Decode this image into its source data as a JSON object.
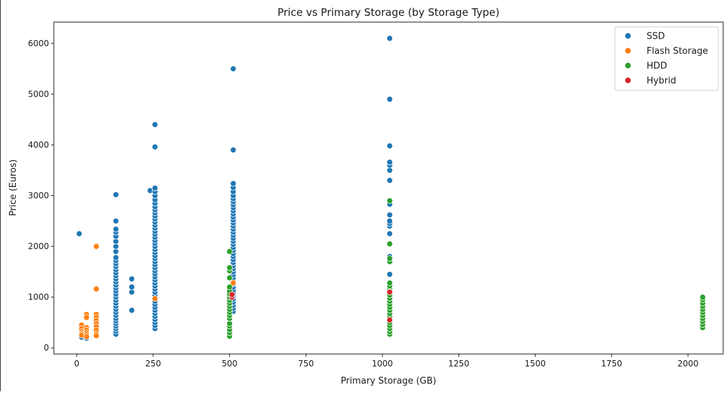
{
  "chart_data": {
    "type": "scatter",
    "title": "Price vs Primary Storage (by Storage Type)",
    "xlabel": "Primary Storage (GB)",
    "ylabel": "Price (Euros)",
    "xlim": [
      -75,
      2115
    ],
    "ylim": [
      -120,
      6420
    ],
    "xticks": [
      0,
      250,
      500,
      750,
      1000,
      1250,
      1500,
      1750,
      2000
    ],
    "yticks": [
      0,
      1000,
      2000,
      3000,
      4000,
      5000,
      6000
    ],
    "grid": false,
    "legend_position": "top-right",
    "series": [
      {
        "name": "SSD",
        "color": "#1f77b4",
        "points": [
          [
            8,
            2250
          ],
          [
            16,
            210
          ],
          [
            32,
            190
          ],
          [
            32,
            240
          ],
          [
            128,
            270
          ],
          [
            128,
            330
          ],
          [
            128,
            380
          ],
          [
            128,
            430
          ],
          [
            128,
            480
          ],
          [
            128,
            530
          ],
          [
            128,
            580
          ],
          [
            128,
            640
          ],
          [
            128,
            700
          ],
          [
            128,
            760
          ],
          [
            128,
            820
          ],
          [
            128,
            880
          ],
          [
            128,
            940
          ],
          [
            128,
            1000
          ],
          [
            128,
            1060
          ],
          [
            128,
            1120
          ],
          [
            128,
            1180
          ],
          [
            128,
            1240
          ],
          [
            128,
            1300
          ],
          [
            128,
            1360
          ],
          [
            128,
            1420
          ],
          [
            128,
            1480
          ],
          [
            128,
            1540
          ],
          [
            128,
            1600
          ],
          [
            128,
            1660
          ],
          [
            128,
            1720
          ],
          [
            128,
            1780
          ],
          [
            128,
            1900
          ],
          [
            128,
            2000
          ],
          [
            128,
            2100
          ],
          [
            128,
            2200
          ],
          [
            128,
            2280
          ],
          [
            128,
            2340
          ],
          [
            128,
            2500
          ],
          [
            128,
            3020
          ],
          [
            180,
            740
          ],
          [
            180,
            1100
          ],
          [
            180,
            1200
          ],
          [
            180,
            1360
          ],
          [
            240,
            3100
          ],
          [
            256,
            380
          ],
          [
            256,
            440
          ],
          [
            256,
            500
          ],
          [
            256,
            560
          ],
          [
            256,
            620
          ],
          [
            256,
            680
          ],
          [
            256,
            740
          ],
          [
            256,
            800
          ],
          [
            256,
            860
          ],
          [
            256,
            920
          ],
          [
            256,
            980
          ],
          [
            256,
            1040
          ],
          [
            256,
            1100
          ],
          [
            256,
            1160
          ],
          [
            256,
            1220
          ],
          [
            256,
            1280
          ],
          [
            256,
            1340
          ],
          [
            256,
            1400
          ],
          [
            256,
            1460
          ],
          [
            256,
            1520
          ],
          [
            256,
            1580
          ],
          [
            256,
            1640
          ],
          [
            256,
            1700
          ],
          [
            256,
            1760
          ],
          [
            256,
            1820
          ],
          [
            256,
            1880
          ],
          [
            256,
            1940
          ],
          [
            256,
            2000
          ],
          [
            256,
            2060
          ],
          [
            256,
            2120
          ],
          [
            256,
            2180
          ],
          [
            256,
            2240
          ],
          [
            256,
            2300
          ],
          [
            256,
            2360
          ],
          [
            256,
            2420
          ],
          [
            256,
            2480
          ],
          [
            256,
            2540
          ],
          [
            256,
            2600
          ],
          [
            256,
            2660
          ],
          [
            256,
            2720
          ],
          [
            256,
            2780
          ],
          [
            256,
            2850
          ],
          [
            256,
            2920
          ],
          [
            256,
            3000
          ],
          [
            256,
            3080
          ],
          [
            256,
            3150
          ],
          [
            256,
            3960
          ],
          [
            256,
            4400
          ],
          [
            512,
            720
          ],
          [
            512,
            780
          ],
          [
            512,
            840
          ],
          [
            512,
            900
          ],
          [
            512,
            960
          ],
          [
            512,
            1020
          ],
          [
            512,
            1080
          ],
          [
            512,
            1140
          ],
          [
            512,
            1200
          ],
          [
            512,
            1260
          ],
          [
            512,
            1320
          ],
          [
            512,
            1380
          ],
          [
            512,
            1440
          ],
          [
            512,
            1500
          ],
          [
            512,
            1560
          ],
          [
            512,
            1620
          ],
          [
            512,
            1680
          ],
          [
            512,
            1740
          ],
          [
            512,
            1800
          ],
          [
            512,
            1860
          ],
          [
            512,
            1920
          ],
          [
            512,
            1980
          ],
          [
            512,
            2040
          ],
          [
            512,
            2100
          ],
          [
            512,
            2160
          ],
          [
            512,
            2220
          ],
          [
            512,
            2280
          ],
          [
            512,
            2340
          ],
          [
            512,
            2400
          ],
          [
            512,
            2460
          ],
          [
            512,
            2520
          ],
          [
            512,
            2580
          ],
          [
            512,
            2640
          ],
          [
            512,
            2700
          ],
          [
            512,
            2760
          ],
          [
            512,
            2820
          ],
          [
            512,
            2880
          ],
          [
            512,
            2940
          ],
          [
            512,
            3000
          ],
          [
            512,
            3080
          ],
          [
            512,
            3160
          ],
          [
            512,
            3240
          ],
          [
            512,
            3900
          ],
          [
            512,
            5500
          ],
          [
            1024,
            1450
          ],
          [
            1024,
            1800
          ],
          [
            1024,
            2250
          ],
          [
            1024,
            2400
          ],
          [
            1024,
            2450
          ],
          [
            1024,
            2500
          ],
          [
            1024,
            2620
          ],
          [
            1024,
            2830
          ],
          [
            1024,
            3300
          ],
          [
            1024,
            3500
          ],
          [
            1024,
            3600
          ],
          [
            1024,
            3660
          ],
          [
            1024,
            3980
          ],
          [
            1024,
            4900
          ],
          [
            1024,
            6100
          ]
        ]
      },
      {
        "name": "Flash Storage",
        "color": "#ff7f0e",
        "points": [
          [
            16,
            450
          ],
          [
            16,
            380
          ],
          [
            16,
            320
          ],
          [
            16,
            280
          ],
          [
            16,
            250
          ],
          [
            32,
            660
          ],
          [
            32,
            600
          ],
          [
            32,
            400
          ],
          [
            32,
            350
          ],
          [
            32,
            300
          ],
          [
            32,
            260
          ],
          [
            32,
            220
          ],
          [
            64,
            2000
          ],
          [
            64,
            1160
          ],
          [
            64,
            660
          ],
          [
            64,
            600
          ],
          [
            64,
            540
          ],
          [
            64,
            480
          ],
          [
            64,
            420
          ],
          [
            64,
            350
          ],
          [
            64,
            280
          ],
          [
            64,
            240
          ],
          [
            256,
            970
          ],
          [
            512,
            1280
          ]
        ]
      },
      {
        "name": "HDD",
        "color": "#2ca02c",
        "points": [
          [
            500,
            230
          ],
          [
            500,
            300
          ],
          [
            500,
            360
          ],
          [
            500,
            430
          ],
          [
            500,
            480
          ],
          [
            500,
            580
          ],
          [
            500,
            640
          ],
          [
            500,
            700
          ],
          [
            500,
            760
          ],
          [
            500,
            820
          ],
          [
            500,
            880
          ],
          [
            500,
            940
          ],
          [
            500,
            1000
          ],
          [
            500,
            1060
          ],
          [
            500,
            1120
          ],
          [
            500,
            1200
          ],
          [
            500,
            1380
          ],
          [
            500,
            1520
          ],
          [
            500,
            1580
          ],
          [
            500,
            1900
          ],
          [
            1024,
            270
          ],
          [
            1024,
            320
          ],
          [
            1024,
            380
          ],
          [
            1024,
            440
          ],
          [
            1024,
            500
          ],
          [
            1024,
            560
          ],
          [
            1024,
            620
          ],
          [
            1024,
            680
          ],
          [
            1024,
            740
          ],
          [
            1024,
            800
          ],
          [
            1024,
            860
          ],
          [
            1024,
            920
          ],
          [
            1024,
            980
          ],
          [
            1024,
            1040
          ],
          [
            1024,
            1100
          ],
          [
            1024,
            1160
          ],
          [
            1024,
            1220
          ],
          [
            1024,
            1280
          ],
          [
            1024,
            1700
          ],
          [
            1024,
            1760
          ],
          [
            1024,
            2050
          ],
          [
            1024,
            2900
          ],
          [
            2048,
            400
          ],
          [
            2048,
            460
          ],
          [
            2048,
            520
          ],
          [
            2048,
            580
          ],
          [
            2048,
            640
          ],
          [
            2048,
            700
          ],
          [
            2048,
            760
          ],
          [
            2048,
            820
          ],
          [
            2048,
            880
          ],
          [
            2048,
            950
          ],
          [
            2048,
            1000
          ]
        ]
      },
      {
        "name": "Hybrid",
        "color": "#d62728",
        "points": [
          [
            508,
            1000
          ],
          [
            508,
            1050
          ],
          [
            1024,
            550
          ],
          [
            1024,
            1100
          ]
        ]
      }
    ]
  }
}
